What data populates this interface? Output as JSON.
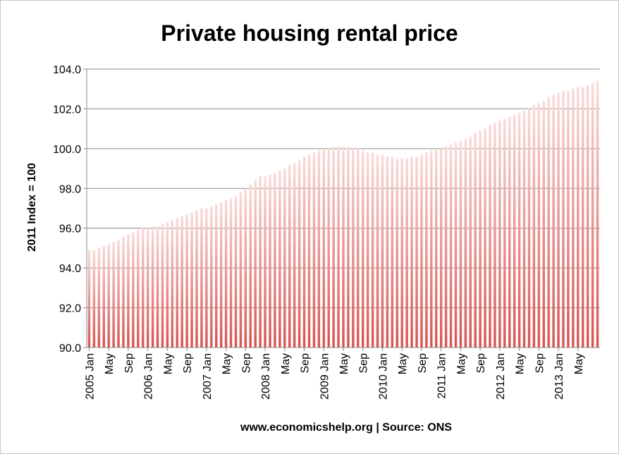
{
  "chart_data": {
    "type": "bar",
    "title": "Private housing rental price",
    "xlabel": "",
    "ylabel": "2011 Index = 100",
    "source_text": "www.economicshelp.org | Source: ONS",
    "ylim": [
      90,
      104
    ],
    "yticks": [
      "90.0",
      "92.0",
      "94.0",
      "96.0",
      "98.0",
      "100.0",
      "102.0",
      "104.0"
    ],
    "grid": true,
    "legend": "none",
    "bar_color_top": "#f9dcd9",
    "bar_color_bottom": "#d9534f",
    "x_tick_labels": [
      {
        "index": 0,
        "label": "2005 Jan"
      },
      {
        "index": 4,
        "label": "May"
      },
      {
        "index": 8,
        "label": "Sep"
      },
      {
        "index": 12,
        "label": "2006 Jan"
      },
      {
        "index": 16,
        "label": "May"
      },
      {
        "index": 20,
        "label": "Sep"
      },
      {
        "index": 24,
        "label": "2007 Jan"
      },
      {
        "index": 28,
        "label": "May"
      },
      {
        "index": 32,
        "label": "Sep"
      },
      {
        "index": 36,
        "label": "2008 Jan"
      },
      {
        "index": 40,
        "label": "May"
      },
      {
        "index": 44,
        "label": "Sep"
      },
      {
        "index": 48,
        "label": "2009 Jan"
      },
      {
        "index": 52,
        "label": "May"
      },
      {
        "index": 56,
        "label": "Sep"
      },
      {
        "index": 60,
        "label": "2010 Jan"
      },
      {
        "index": 64,
        "label": "May"
      },
      {
        "index": 68,
        "label": "Sep"
      },
      {
        "index": 72,
        "label": "2011 Jan"
      },
      {
        "index": 76,
        "label": "May"
      },
      {
        "index": 80,
        "label": "Sep"
      },
      {
        "index": 84,
        "label": "2012 Jan"
      },
      {
        "index": 88,
        "label": "May"
      },
      {
        "index": 92,
        "label": "Sep"
      },
      {
        "index": 96,
        "label": "2013 Jan"
      },
      {
        "index": 100,
        "label": "May"
      }
    ],
    "values": [
      94.9,
      94.9,
      95.0,
      95.1,
      95.2,
      95.3,
      95.4,
      95.6,
      95.7,
      95.8,
      95.9,
      96.0,
      96.0,
      96.1,
      96.1,
      96.2,
      96.3,
      96.4,
      96.5,
      96.6,
      96.7,
      96.8,
      96.9,
      97.0,
      97.0,
      97.1,
      97.2,
      97.3,
      97.4,
      97.5,
      97.6,
      97.8,
      98.0,
      98.2,
      98.4,
      98.6,
      98.6,
      98.7,
      98.8,
      98.9,
      99.0,
      99.2,
      99.3,
      99.4,
      99.6,
      99.7,
      99.8,
      99.9,
      100.0,
      100.0,
      100.1,
      100.1,
      100.1,
      100.1,
      100.0,
      100.0,
      99.9,
      99.8,
      99.8,
      99.7,
      99.7,
      99.6,
      99.6,
      99.5,
      99.5,
      99.5,
      99.6,
      99.6,
      99.7,
      99.8,
      99.9,
      100.0,
      100.0,
      100.1,
      100.2,
      100.3,
      100.4,
      100.5,
      100.6,
      100.8,
      100.9,
      101.0,
      101.2,
      101.3,
      101.4,
      101.5,
      101.6,
      101.7,
      101.8,
      101.9,
      102.0,
      102.2,
      102.3,
      102.4,
      102.6,
      102.7,
      102.8,
      102.9,
      102.9,
      103.0,
      103.1,
      103.1,
      103.2,
      103.3,
      103.4
    ]
  }
}
